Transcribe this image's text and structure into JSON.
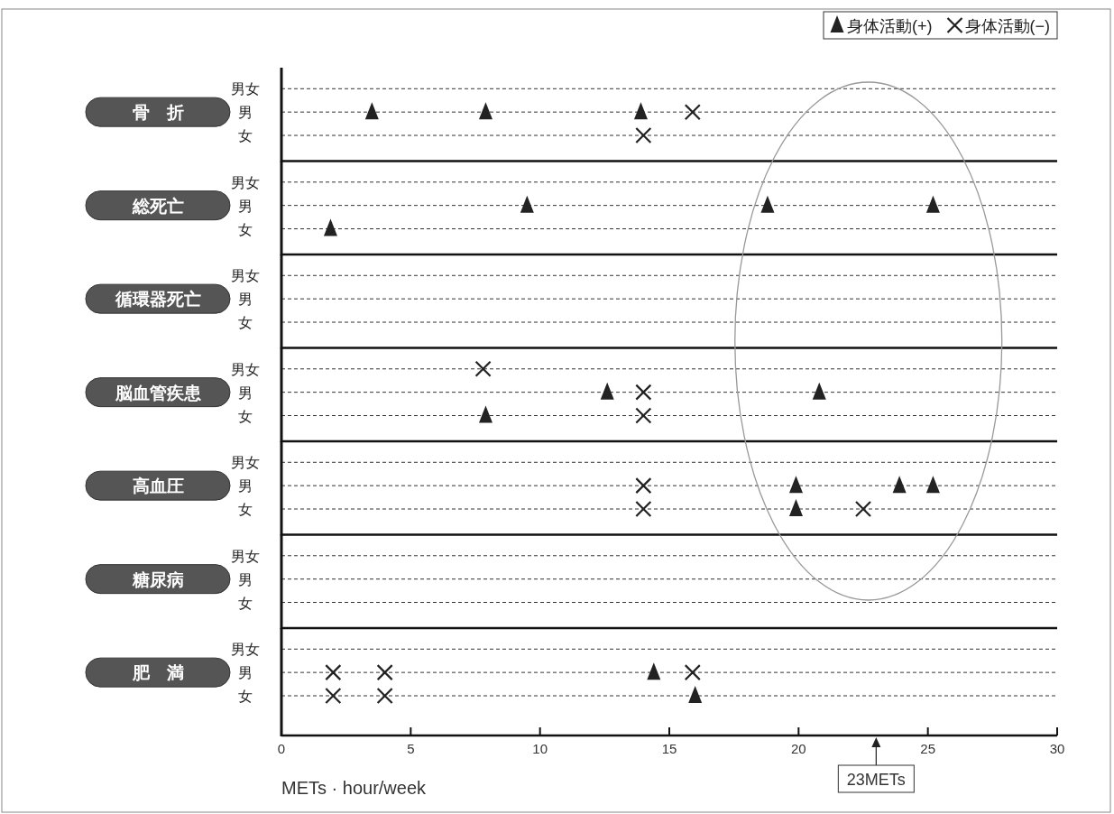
{
  "chart_data": [
    {
      "type": "scatter",
      "title": "骨　折",
      "orientation": "horizontal",
      "categories": [
        "男女",
        "男",
        "女"
      ],
      "xlim": [
        0,
        30
      ],
      "tick_labels": "y",
      "grid": "y",
      "legend": "top right",
      "series": [
        {
          "name": "身体活動(+)",
          "color": "#222222",
          "marker": "triangle",
          "values": [
            null,
            3.5,
            null
          ]
        },
        {
          "color": "#222222",
          "marker": "triangle",
          "values": [
            null,
            7.9,
            null
          ]
        },
        {
          "color": "#222222",
          "marker": "triangle",
          "values": [
            null,
            13.9,
            null
          ]
        },
        {
          "name": "身体活動(−)",
          "color": "#222222",
          "marker": "cross",
          "values": [
            null,
            15.9,
            14
          ]
        }
      ]
    },
    {
      "type": "scatter",
      "title": "総死亡",
      "orientation": "horizontal",
      "categories": [
        "男女",
        "男",
        "女"
      ],
      "xlim": [
        0,
        30
      ],
      "tick_labels": "y",
      "grid": "y",
      "series": [
        {
          "color": "#222222",
          "marker": "triangle",
          "values": [
            null,
            9.5,
            1.9
          ]
        },
        {
          "color": "#222222",
          "marker": "triangle",
          "values": [
            null,
            18.8,
            null
          ]
        },
        {
          "color": "#222222",
          "marker": "triangle",
          "values": [
            null,
            25.2,
            null
          ]
        }
      ]
    },
    {
      "type": "scatter",
      "title": "循環器死亡",
      "orientation": "horizontal",
      "categories": [
        "男女",
        "男",
        "女"
      ],
      "xlim": [
        0,
        30
      ],
      "tick_labels": "y",
      "grid": "y"
    },
    {
      "type": "scatter",
      "title": "脳血管疾患",
      "orientation": "horizontal",
      "categories": [
        "男女",
        "男",
        "女"
      ],
      "xlim": [
        0,
        30
      ],
      "tick_labels": "y",
      "grid": "y",
      "series": [
        {
          "color": "#222222",
          "marker": "triangle",
          "values": [
            null,
            12.6,
            7.9
          ]
        },
        {
          "color": "#222222",
          "marker": "triangle",
          "values": [
            null,
            20.8,
            null
          ]
        },
        {
          "color": "#222222",
          "marker": "cross",
          "values": [
            7.8,
            14,
            14
          ]
        }
      ]
    },
    {
      "type": "scatter",
      "title": "高血圧",
      "orientation": "horizontal",
      "categories": [
        "男女",
        "男",
        "女"
      ],
      "xlim": [
        0,
        30
      ],
      "tick_labels": "y",
      "grid": "y",
      "series": [
        {
          "color": "#222222",
          "marker": "triangle",
          "values": [
            null,
            19.9,
            19.9
          ]
        },
        {
          "color": "#222222",
          "marker": "triangle",
          "values": [
            null,
            23.9,
            null
          ]
        },
        {
          "color": "#222222",
          "marker": "triangle",
          "values": [
            null,
            25.2,
            null
          ]
        },
        {
          "color": "#222222",
          "marker": "cross",
          "values": [
            null,
            14,
            14
          ]
        },
        {
          "color": "#222222",
          "marker": "cross",
          "values": [
            null,
            null,
            22.5
          ]
        }
      ]
    },
    {
      "type": "scatter",
      "title": "糖尿病",
      "orientation": "horizontal",
      "categories": [
        "男女",
        "男",
        "女"
      ],
      "xlim": [
        0,
        30
      ],
      "tick_labels": "y",
      "grid": "y"
    },
    {
      "type": "scatter",
      "title": "肥　満",
      "orientation": "horizontal",
      "categories": [
        "男女",
        "男",
        "女"
      ],
      "xlim": [
        0,
        30
      ],
      "xticks": [
        0,
        5,
        10,
        15,
        20,
        25,
        30
      ],
      "grid": "y",
      "xlabel": "METs · hour/week",
      "annotations": [
        "23METs"
      ],
      "series": [
        {
          "color": "#222222",
          "marker": "triangle",
          "values": [
            null,
            14.4,
            16
          ]
        },
        {
          "color": "#222222",
          "marker": "cross",
          "values": [
            null,
            2,
            2
          ]
        },
        {
          "color": "#222222",
          "marker": "cross",
          "values": [
            null,
            4,
            4
          ]
        },
        {
          "color": "#222222",
          "marker": "cross",
          "values": [
            null,
            15.9,
            null
          ]
        }
      ]
    }
  ]
}
